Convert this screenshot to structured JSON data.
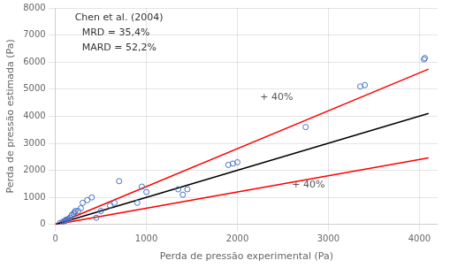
{
  "chart_data": {
    "type": "scatter",
    "x_label": "Perda de pressão experimental (Pa)",
    "y_label": "Perda de pressão estimada (Pa)",
    "series": [
      {
        "type": "scatter",
        "color": "#4472C4",
        "marker": "circle",
        "x": [
          50,
          80,
          100,
          110,
          120,
          140,
          150,
          160,
          180,
          200,
          210,
          220,
          250,
          280,
          300,
          350,
          400,
          450,
          500,
          600,
          650,
          700,
          900,
          950,
          1000,
          1350,
          1400,
          1450,
          1900,
          1950,
          2000,
          2750,
          3350,
          3400,
          4050,
          4060
        ],
        "values": [
          50,
          100,
          120,
          150,
          180,
          200,
          200,
          250,
          350,
          400,
          450,
          500,
          500,
          600,
          800,
          900,
          1000,
          250,
          500,
          700,
          800,
          1600,
          800,
          1400,
          1200,
          1300,
          1100,
          1300,
          2200,
          2250,
          2300,
          3600,
          5100,
          5150,
          6100,
          6150
        ]
      },
      {
        "type": "line",
        "color": "#000000",
        "x": [
          0,
          4100
        ],
        "values": [
          0,
          4100
        ]
      },
      {
        "type": "line",
        "color": "#FF0000",
        "x": [
          0,
          4100
        ],
        "values": [
          0,
          5740
        ]
      },
      {
        "type": "line",
        "color": "#FF0000",
        "x": [
          0,
          4100
        ],
        "values": [
          0,
          2460
        ]
      }
    ],
    "annotations": [
      {
        "text": "+ 40%",
        "x": 2250,
        "y": 4600,
        "color": "#555555"
      },
      {
        "text": "+ 40%",
        "x": 2600,
        "y": 1350,
        "color": "#555555"
      },
      {
        "text": "Chen et al. (2004)"
      },
      {
        "text": "MRD = 35,4%"
      },
      {
        "text": "MARD = 52,2%"
      }
    ],
    "xlim": [
      0,
      4200
    ],
    "ylim": [
      0,
      8000
    ],
    "xticks": [
      0,
      1000,
      2000,
      3000,
      4000
    ],
    "yticks": [
      0,
      1000,
      2000,
      3000,
      4000,
      5000,
      6000,
      7000,
      8000
    ],
    "grid": true
  }
}
